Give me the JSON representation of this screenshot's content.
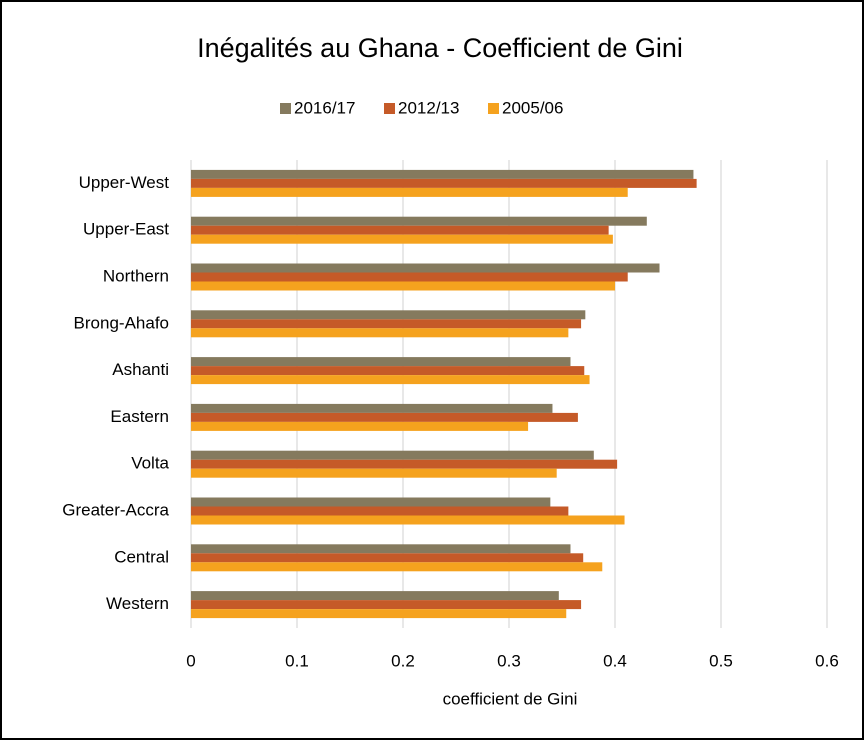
{
  "chart_data": {
    "type": "bar",
    "orientation": "horizontal",
    "title": "Inégalités au Ghana - Coefficient de Gini",
    "x_label": "coefficient de Gini",
    "categories": [
      "Upper-West",
      "Upper-East",
      "Northern",
      "Brong-Ahafo",
      "Ashanti",
      "Eastern",
      "Volta",
      "Greater-Accra",
      "Central",
      "Western"
    ],
    "series": [
      {
        "name": "2016/17",
        "color": "#857a5e",
        "values": [
          0.474,
          0.43,
          0.442,
          0.372,
          0.358,
          0.341,
          0.38,
          0.339,
          0.358,
          0.347
        ]
      },
      {
        "name": "2012/13",
        "color": "#c55a28",
        "values": [
          0.477,
          0.394,
          0.412,
          0.368,
          0.371,
          0.365,
          0.402,
          0.356,
          0.37,
          0.368
        ]
      },
      {
        "name": "2005/06",
        "color": "#f5a21e",
        "values": [
          0.412,
          0.398,
          0.4,
          0.356,
          0.376,
          0.318,
          0.345,
          0.409,
          0.388,
          0.354
        ]
      }
    ],
    "xlim": [
      0,
      0.6
    ],
    "xticks": [
      0,
      0.1,
      0.2,
      0.3,
      0.4,
      0.5,
      0.6
    ],
    "grid": true,
    "legend": "top"
  }
}
